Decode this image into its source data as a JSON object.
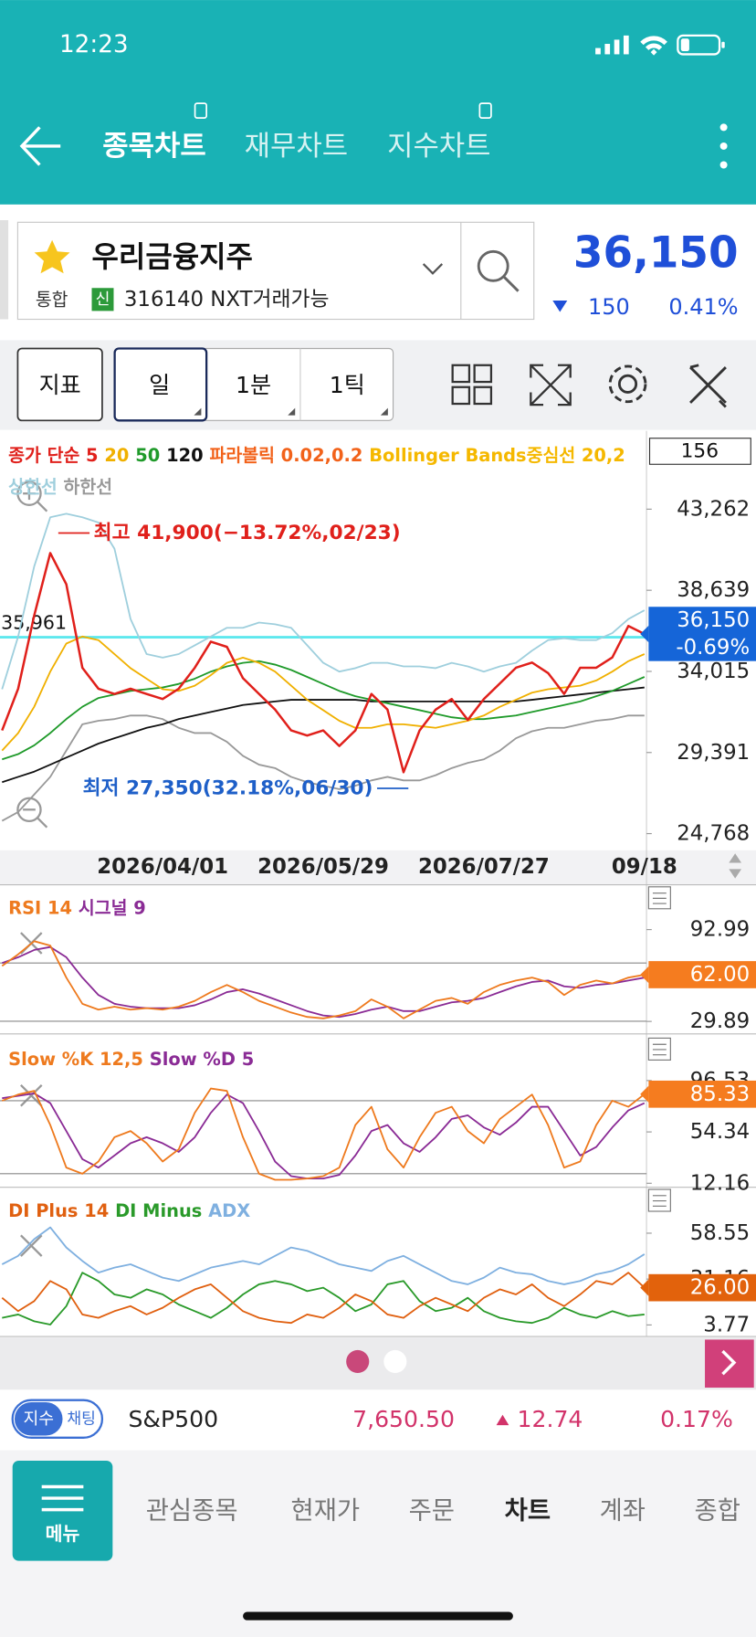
{
  "status_bar": {
    "time": "12:23"
  },
  "tabs": [
    "종목차트",
    "재무차트",
    "지수차트"
  ],
  "stock": {
    "name": "우리금융지주",
    "market": "통합",
    "badge": "신",
    "code": "316140 NXT거래가능",
    "price": "36,150",
    "change": "150",
    "change_pct": "0.41%"
  },
  "toolbar": {
    "buttons": [
      "지표",
      "일",
      "1분",
      "1틱"
    ]
  },
  "chart_data": [
    {
      "type": "line",
      "period": "156",
      "categories": [
        null,
        null,
        null,
        null,
        null,
        null,
        null,
        null,
        null,
        null,
        "2026/04/01",
        null,
        null,
        null,
        null,
        null,
        null,
        null,
        null,
        null,
        "2026/05/29",
        null,
        null,
        null,
        null,
        null,
        null,
        null,
        null,
        null,
        "2026/07/27",
        null,
        null,
        null,
        null,
        null,
        null,
        null,
        null,
        null,
        "09/18"
      ],
      "series": [
        {
          "name": "종가 단순 5",
          "color": "#e0201b",
          "values": [
            30650,
            33030,
            37200,
            40760,
            38980,
            34220,
            33030,
            32730,
            33030,
            32730,
            32440,
            33030,
            34220,
            35710,
            35410,
            33630,
            32730,
            31840,
            30650,
            30360,
            30650,
            29760,
            30650,
            32730,
            31840,
            28270,
            30650,
            31840,
            32440,
            31250,
            32440,
            33330,
            34220,
            34520,
            33920,
            32730,
            34220,
            34220,
            34810,
            36600,
            36150
          ]
        },
        {
          "name": "20",
          "color": "#f0b000",
          "values": [
            29500,
            30500,
            32000,
            34000,
            35600,
            36000,
            35800,
            35000,
            34200,
            33600,
            33000,
            32900,
            33200,
            33800,
            34500,
            34800,
            34500,
            34000,
            33200,
            32400,
            31800,
            31200,
            30800,
            30800,
            31000,
            31000,
            30900,
            30800,
            31000,
            31200,
            31500,
            32000,
            32400,
            32800,
            33000,
            33100,
            33200,
            33500,
            34000,
            34600,
            35000
          ]
        },
        {
          "name": "50",
          "color": "#1f9a2a",
          "values": [
            29000,
            29300,
            29800,
            30500,
            31300,
            32000,
            32500,
            32700,
            32900,
            33000,
            33100,
            33300,
            33600,
            34000,
            34300,
            34500,
            34600,
            34400,
            34100,
            33700,
            33300,
            32900,
            32600,
            32400,
            32200,
            32000,
            31800,
            31600,
            31400,
            31300,
            31300,
            31400,
            31500,
            31700,
            31900,
            32100,
            32300,
            32600,
            32900,
            33300,
            33700
          ]
        },
        {
          "name": "120",
          "color": "#111111",
          "values": [
            27700,
            28000,
            28300,
            28700,
            29100,
            29500,
            29900,
            30200,
            30500,
            30800,
            31000,
            31300,
            31500,
            31700,
            31900,
            32100,
            32200,
            32300,
            32400,
            32400,
            32400,
            32400,
            32400,
            32300,
            32300,
            32300,
            32300,
            32300,
            32300,
            32300,
            32300,
            32300,
            32300,
            32400,
            32500,
            32600,
            32700,
            32800,
            32900,
            33000,
            33100
          ]
        },
        {
          "name": "상한선",
          "color": "#9fcfdd",
          "values": [
            33000,
            36000,
            40000,
            42800,
            43000,
            42800,
            42500,
            41000,
            37000,
            35000,
            34800,
            35000,
            35500,
            36000,
            36500,
            36500,
            36800,
            36700,
            36500,
            35500,
            34500,
            34000,
            34200,
            34500,
            34500,
            34300,
            34300,
            34200,
            34500,
            34300,
            34000,
            34300,
            34500,
            35200,
            35800,
            35900,
            35800,
            35800,
            36200,
            37000,
            37500
          ]
        },
        {
          "name": "하한선",
          "color": "#999999",
          "values": [
            25500,
            26000,
            27000,
            28000,
            29500,
            31000,
            31200,
            31300,
            31500,
            31500,
            31300,
            30800,
            30500,
            30500,
            30000,
            29200,
            28700,
            28500,
            28000,
            27700,
            27500,
            27300,
            27500,
            27800,
            28000,
            27800,
            27800,
            28100,
            28500,
            28800,
            29000,
            29500,
            30200,
            30600,
            30800,
            30800,
            31000,
            31200,
            31300,
            31500,
            31500
          ]
        }
      ],
      "legend_extra": [
        {
          "text": "파라볼릭 0.02,0.2",
          "color": "#f2621a"
        },
        {
          "text": "Bollinger Bands중심선 20,2",
          "color": "#f5b800"
        }
      ],
      "ylim": [
        23816,
        47722
      ],
      "yticks": [
        {
          "value": 24768,
          "label": "24,768"
        },
        {
          "value": 29391,
          "label": "29,391"
        },
        {
          "value": 34015,
          "label": "34,015"
        },
        {
          "value": 38639,
          "label": "38,639"
        },
        {
          "value": 43262,
          "label": "43,262"
        }
      ],
      "ref_line": {
        "value": 35961,
        "label": "35,961",
        "color": "#5ee8ee"
      },
      "tag": {
        "value": 36150,
        "label": "36,150",
        "change": "-0.69%",
        "color": "#1565d8"
      },
      "annotations": [
        {
          "text": "최고 41,900(−13.72%,02/23)",
          "color": "#e0201b",
          "x": 3.5,
          "value": 41900
        },
        {
          "text": "최저 27,350(32.18%,06/30)",
          "color": "#1e5fc8",
          "x": 25.3,
          "value": 27350
        }
      ]
    },
    {
      "type": "line",
      "series": [
        {
          "name": "RSI 14",
          "color": "#ee7a1e",
          "values": [
            68,
            76,
            85,
            82,
            60,
            42,
            38,
            40,
            38,
            39,
            38,
            40,
            44,
            50,
            55,
            50,
            44,
            40,
            36,
            33,
            32,
            34,
            37,
            45,
            40,
            32,
            38,
            44,
            46,
            42,
            50,
            55,
            58,
            60,
            57,
            48,
            55,
            58,
            56,
            60,
            62
          ]
        },
        {
          "name": "시그널 9",
          "color": "#8a2b95",
          "values": [
            70,
            74,
            79,
            81,
            74,
            60,
            48,
            42,
            40,
            39,
            39,
            39,
            41,
            45,
            50,
            52,
            49,
            45,
            41,
            37,
            34,
            33,
            35,
            38,
            40,
            37,
            37,
            40,
            43,
            44,
            46,
            50,
            54,
            57,
            58,
            54,
            53,
            55,
            56,
            58,
            60
          ]
        }
      ],
      "ylim": [
        22.0,
        123.8
      ],
      "yticks": [
        29.89,
        92.99
      ],
      "guides": [
        70,
        30
      ],
      "tag": {
        "value": 62,
        "label": "62.00",
        "color": "#f57c1f"
      }
    },
    {
      "type": "line",
      "series": [
        {
          "name": "Slow %K 12,5",
          "color": "#ee7a1e",
          "values": [
            80,
            85,
            88,
            60,
            25,
            20,
            30,
            50,
            55,
            45,
            30,
            40,
            70,
            90,
            88,
            50,
            20,
            15,
            15,
            16,
            18,
            25,
            60,
            75,
            40,
            25,
            50,
            70,
            75,
            55,
            45,
            65,
            75,
            85,
            60,
            25,
            30,
            60,
            80,
            75,
            85.33
          ]
        },
        {
          "name": "Slow %D 5",
          "color": "#8a2b95",
          "values": [
            82,
            84,
            86,
            78,
            55,
            32,
            25,
            35,
            45,
            50,
            45,
            38,
            50,
            70,
            85,
            78,
            55,
            30,
            18,
            16,
            16,
            19,
            35,
            55,
            60,
            45,
            38,
            50,
            65,
            68,
            58,
            52,
            62,
            75,
            75,
            55,
            35,
            42,
            58,
            72,
            78
          ]
        }
      ],
      "ylim": [
        9.7,
        133.1
      ],
      "yticks": [
        12.16,
        54.34,
        96.53
      ],
      "guides": [
        80,
        20
      ],
      "tag": {
        "value": 85.33,
        "color": "#f57c1f"
      }
    },
    {
      "type": "line",
      "series": [
        {
          "name": "DI Plus 14",
          "color": "#e06010",
          "values": [
            20,
            12,
            18,
            30,
            25,
            10,
            8,
            12,
            15,
            10,
            14,
            20,
            25,
            28,
            20,
            12,
            8,
            6,
            5,
            10,
            8,
            14,
            22,
            18,
            10,
            8,
            15,
            20,
            16,
            12,
            20,
            25,
            22,
            28,
            20,
            15,
            22,
            30,
            28,
            35,
            26
          ]
        },
        {
          "name": "DI Minus",
          "color": "#2a9a2a",
          "values": [
            8,
            10,
            6,
            4,
            15,
            35,
            30,
            22,
            20,
            25,
            22,
            16,
            12,
            8,
            14,
            22,
            28,
            30,
            28,
            24,
            26,
            20,
            12,
            16,
            28,
            30,
            18,
            12,
            14,
            20,
            12,
            8,
            6,
            5,
            8,
            14,
            10,
            8,
            12,
            9,
            10
          ]
        },
        {
          "name": "ADX",
          "color": "#7fb0e0",
          "values": [
            40,
            45,
            55,
            62,
            50,
            42,
            35,
            38,
            40,
            36,
            32,
            30,
            34,
            38,
            40,
            42,
            40,
            45,
            50,
            48,
            44,
            40,
            38,
            36,
            42,
            45,
            40,
            35,
            30,
            28,
            32,
            38,
            35,
            34,
            30,
            28,
            30,
            34,
            36,
            40,
            46
          ]
        }
      ],
      "ylim": [
        -2.5,
        84.7
      ],
      "yticks": [
        3.77,
        31.16,
        58.55
      ],
      "tag": {
        "value": 26,
        "label": "26.00",
        "color": "#e2620c"
      }
    }
  ],
  "index_ticker": {
    "tag": "지수",
    "tag2": "채팅",
    "name": "S&P500",
    "value": "7,650.50",
    "change": "12.74",
    "change_pct": "0.17%"
  },
  "nav": {
    "menu": "메뉴",
    "items": [
      "관심종목",
      "현재가",
      "주문",
      "차트",
      "계좌",
      "종합"
    ]
  }
}
